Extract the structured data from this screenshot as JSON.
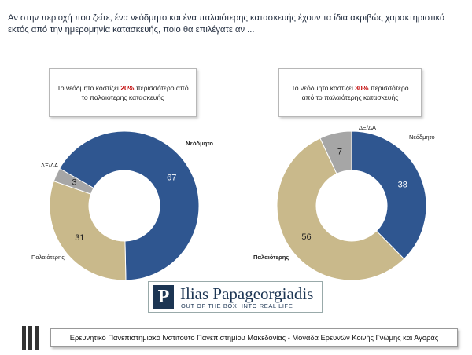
{
  "title": "Αν στην περιοχή που ζείτε, ένα νεόδμητο και ένα παλαιότερης κατασκευής έχουν τα ίδια ακριβώς χαρακτηριστικά εκτός από την ημερομηνία κατασκευής, ποιο θα επιλέγατε αν ...",
  "chart_data": [
    {
      "type": "pie",
      "donut": true,
      "note_before": "Το νεόδμητο κοστίζει ",
      "note_highlight": "20%",
      "note_after": " περισσότερο από το παλαιότερης κατασκευής",
      "categories": [
        "Νεόδμητο",
        "Παλαιότερης",
        "ΔΞ/ΔΑ"
      ],
      "values": [
        67,
        31,
        3
      ],
      "colors": [
        "#2f5690",
        "#c9b98b",
        "#a6a6a6"
      ]
    },
    {
      "type": "pie",
      "donut": true,
      "note_before": "Το νεόδμητο κοστίζει ",
      "note_highlight": "30%",
      "note_after": " περισσότερο από το παλαιότερης κατασκευής",
      "categories": [
        "Νεόδμητο",
        "Παλαιότερης",
        "ΔΞ/ΔΑ"
      ],
      "values": [
        38,
        56,
        7
      ],
      "colors": [
        "#2f5690",
        "#c9b98b",
        "#a6a6a6"
      ]
    }
  ],
  "logo": {
    "name": "Ilias Papageorgiadis",
    "tagline": "OUT OF THE BOX, INTO REAL LIFE"
  },
  "footer": "Ερευνητικό Πανεπιστημιακό Ινστιτούτο Πανεπιστημίου Μακεδονίας - Μονάδα Ερευνών Κοινής Γνώμης και Αγοράς"
}
